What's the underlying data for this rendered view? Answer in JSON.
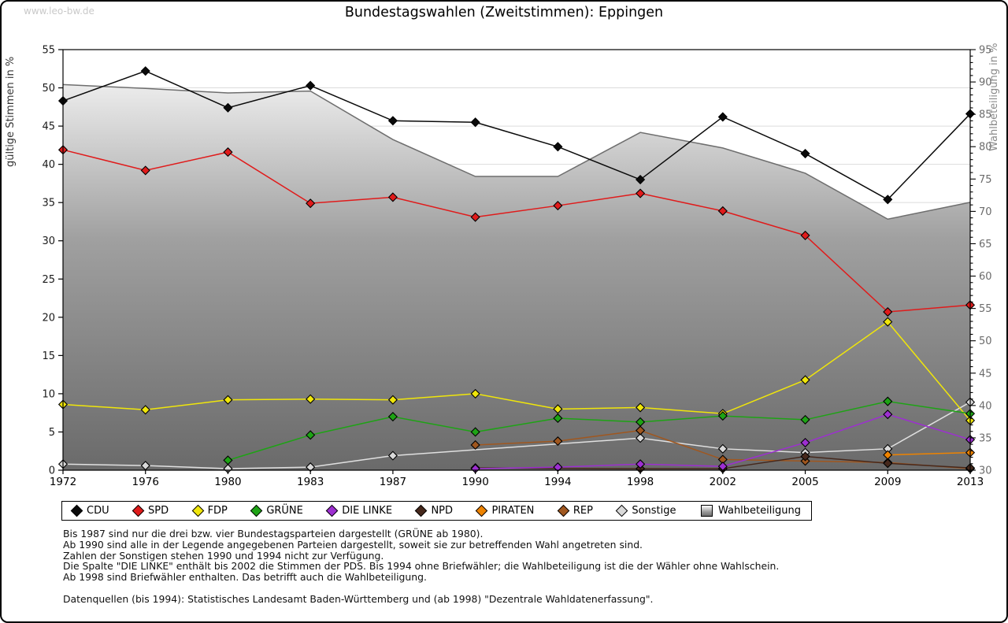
{
  "page": {
    "watermark": "www.leo-bw.de"
  },
  "chart_data": {
    "type": "line",
    "title": "Bundestagswahlen (Zweitstimmen): Eppingen",
    "x_categories": [
      "1972",
      "1976",
      "1980",
      "1983",
      "1987",
      "1990",
      "1994",
      "1998",
      "2002",
      "2005",
      "2009",
      "2013"
    ],
    "left_axis": {
      "label": "gültige Stimmen in %",
      "min": 0,
      "max": 55,
      "tick_step": 5
    },
    "right_axis": {
      "label": "Wahlbeteiligung in %",
      "min": 30,
      "max": 95,
      "tick_step": 5,
      "minor_step": 1
    },
    "grid": true,
    "legend_position": "bottom",
    "series": [
      {
        "name": "CDU",
        "type": "line",
        "axis": "left",
        "color": "#0a0a0a",
        "values": [
          48.3,
          52.2,
          47.4,
          50.3,
          45.7,
          45.5,
          42.3,
          38.0,
          46.2,
          41.4,
          35.4,
          46.6
        ]
      },
      {
        "name": "SPD",
        "type": "line",
        "axis": "left",
        "color": "#e01b1b",
        "values": [
          41.9,
          39.2,
          41.6,
          34.9,
          35.7,
          33.1,
          34.6,
          36.2,
          33.9,
          30.7,
          20.7,
          21.6
        ]
      },
      {
        "name": "FDP",
        "type": "line",
        "axis": "left",
        "color": "#f0e60a",
        "values": [
          8.6,
          7.9,
          9.2,
          9.3,
          9.2,
          10.0,
          8.0,
          8.2,
          7.4,
          11.8,
          19.4,
          6.5
        ]
      },
      {
        "name": "GRÜNE",
        "type": "line",
        "axis": "left",
        "color": "#1ea315",
        "values": [
          null,
          null,
          1.3,
          4.6,
          7.0,
          5.0,
          6.8,
          6.3,
          7.1,
          6.6,
          9.0,
          7.4
        ]
      },
      {
        "name": "DIE LINKE",
        "type": "line",
        "axis": "left",
        "color": "#9d2fd1",
        "values": [
          null,
          null,
          null,
          null,
          null,
          0.2,
          0.4,
          0.8,
          0.5,
          3.6,
          7.3,
          4.0
        ]
      },
      {
        "name": "NPD",
        "type": "line",
        "axis": "left",
        "color": "#46281c",
        "values": [
          null,
          null,
          null,
          null,
          null,
          0.3,
          null,
          0.2,
          0.2,
          1.8,
          0.9,
          0.3
        ]
      },
      {
        "name": "PIRATEN",
        "type": "line",
        "axis": "left",
        "color": "#ee8300",
        "values": [
          null,
          null,
          null,
          null,
          null,
          null,
          null,
          null,
          null,
          null,
          2.0,
          2.3
        ]
      },
      {
        "name": "REP",
        "type": "line",
        "axis": "left",
        "color": "#a0571f",
        "values": [
          null,
          null,
          null,
          null,
          null,
          3.3,
          3.8,
          5.2,
          1.4,
          1.2,
          1.0,
          0.2
        ]
      },
      {
        "name": "Sonstige",
        "type": "line",
        "axis": "left",
        "color": "#d9d9d9",
        "line_color": "#e0e0e0",
        "values": [
          0.8,
          0.6,
          0.2,
          0.4,
          1.9,
          null,
          null,
          4.2,
          2.8,
          2.3,
          2.8,
          8.9
        ]
      },
      {
        "name": "Wahlbeteiligung",
        "type": "area",
        "axis": "right",
        "color": "#6e6e6e",
        "fill_top": "#fdfdfd",
        "fill_mid": "#a0a0a0",
        "fill_bottom": "#6a6a6a",
        "values": [
          89.6,
          89.0,
          88.3,
          88.6,
          81.1,
          75.4,
          75.4,
          82.2,
          79.8,
          75.9,
          68.8,
          71.4
        ]
      }
    ]
  },
  "footnotes": [
    "Bis 1987 sind nur die drei bzw. vier Bundestagsparteien dargestellt (GRÜNE ab 1980).",
    "Ab 1990 sind alle in der Legende angegebenen Parteien dargestellt, soweit sie zur betreffenden Wahl angetreten sind.",
    "Zahlen der Sonstigen stehen 1990 und 1994 nicht zur Verfügung.",
    "Die Spalte \"DIE LINKE\" enthält bis 2002 die Stimmen der PDS. Bis 1994 ohne Briefwähler; die Wahlbeteiligung ist die der Wähler ohne Wahlschein.",
    "Ab 1998 sind Briefwähler enthalten. Das betrifft auch die Wahlbeteiligung."
  ],
  "datasource": "Datenquellen (bis 1994): Statistisches Landesamt Baden-Württemberg und (ab 1998) \"Dezentrale Wahldatenerfassung\"."
}
